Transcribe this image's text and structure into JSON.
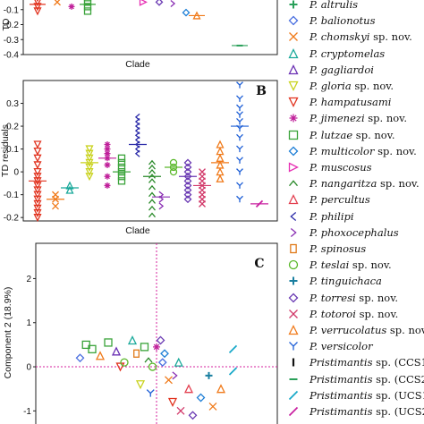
{
  "species": [
    {
      "id": "altrulis",
      "genus": "P.",
      "epithet": "altrulis",
      "suffix": "",
      "color": "#2aa05a",
      "symbol": "plus"
    },
    {
      "id": "balionotus",
      "genus": "P.",
      "epithet": "balionotus",
      "suffix": "",
      "color": "#4a6fe0",
      "symbol": "diamond"
    },
    {
      "id": "chomskyi",
      "genus": "P.",
      "epithet": "chomskyi",
      "suffix": "sp. nov.",
      "color": "#f07a1a",
      "symbol": "x"
    },
    {
      "id": "cryptomelas",
      "genus": "P.",
      "epithet": "cryptomelas",
      "suffix": "",
      "color": "#19a99a",
      "symbol": "triangle"
    },
    {
      "id": "gagliardoi",
      "genus": "P.",
      "epithet": "gagliardoi",
      "suffix": "",
      "color": "#6a2fb3",
      "symbol": "triangle"
    },
    {
      "id": "gloria",
      "genus": "P.",
      "epithet": "gloria",
      "suffix": "sp. nov.",
      "color": "#c9d21e",
      "symbol": "tri-down"
    },
    {
      "id": "hampatusami",
      "genus": "P.",
      "epithet": "hampatusami",
      "suffix": "",
      "color": "#e1331f",
      "symbol": "tri-down"
    },
    {
      "id": "jimenezi",
      "genus": "P.",
      "epithet": "jimenezi",
      "suffix": "sp. nov.",
      "color": "#c0209a",
      "symbol": "asterisk"
    },
    {
      "id": "lutzae",
      "genus": "P.",
      "epithet": "lutzae",
      "suffix": "sp. nov.",
      "color": "#3aa33a",
      "symbol": "square"
    },
    {
      "id": "multicolor",
      "genus": "P.",
      "epithet": "multicolor",
      "suffix": "sp. nov.",
      "color": "#1e7fd6",
      "symbol": "diamond"
    },
    {
      "id": "muscosus",
      "genus": "P.",
      "epithet": "muscosus",
      "suffix": "",
      "color": "#e62fb3",
      "symbol": "tri-right"
    },
    {
      "id": "nangaritza",
      "genus": "P.",
      "epithet": "nangaritza",
      "suffix": "sp. nov.",
      "color": "#2a8a2a",
      "symbol": "chevron-up"
    },
    {
      "id": "percultus",
      "genus": "P.",
      "epithet": "percultus",
      "suffix": "",
      "color": "#e34050",
      "symbol": "triangle"
    },
    {
      "id": "philipi",
      "genus": "P.",
      "epithet": "philipi",
      "suffix": "",
      "color": "#2a2aa8",
      "symbol": "chevron-left"
    },
    {
      "id": "phoxocephalus",
      "genus": "P.",
      "epithet": "phoxocephalus",
      "suffix": "",
      "color": "#8a2fb3",
      "symbol": "chevron-right"
    },
    {
      "id": "spinosus",
      "genus": "P.",
      "epithet": "spinosus",
      "suffix": "",
      "color": "#e07a1a",
      "symbol": "rect"
    },
    {
      "id": "teslai",
      "genus": "P.",
      "epithet": "teslai",
      "suffix": "sp. nov.",
      "color": "#5ab82a",
      "symbol": "circle"
    },
    {
      "id": "tinguichaca",
      "genus": "P.",
      "epithet": "tinguichaca",
      "suffix": "",
      "color": "#1a7fa0",
      "symbol": "plus"
    },
    {
      "id": "torresi",
      "genus": "P.",
      "epithet": "torresi",
      "suffix": "sp. nov.",
      "color": "#6a3ab3",
      "symbol": "diamond"
    },
    {
      "id": "totoroi",
      "genus": "P.",
      "epithet": "totoroi",
      "suffix": "sp. nov.",
      "color": "#d23a6a",
      "symbol": "x"
    },
    {
      "id": "verrucolatus",
      "genus": "P.",
      "epithet": "verrucolatus",
      "suffix": "sp. nov.",
      "color": "#f07a1a",
      "symbol": "triangle"
    },
    {
      "id": "versicolor",
      "genus": "P.",
      "epithet": "versicolor",
      "suffix": "",
      "color": "#1e5fd6",
      "symbol": "y"
    },
    {
      "id": "ccs1",
      "genus": "Pristimantis",
      "epithet": "",
      "suffix": "sp. (CCS1)",
      "color": "#111111",
      "symbol": "vbar"
    },
    {
      "id": "ccs2",
      "genus": "Pristimantis",
      "epithet": "",
      "suffix": "sp. (CCS2)",
      "color": "#2aa05a",
      "symbol": "hbar"
    },
    {
      "id": "ucs1",
      "genus": "Pristimantis",
      "epithet": "",
      "suffix": "sp. (UCS1)",
      "color": "#19a9c9",
      "symbol": "slash"
    },
    {
      "id": "ucs2",
      "genus": "Pristimantis",
      "epithet": "",
      "suffix": "sp. (UCS2)",
      "color": "#c920a0",
      "symbol": "slash"
    }
  ],
  "chart_data": [
    {
      "panel": "A",
      "type": "scatter",
      "xlabel": "Clade",
      "ylabel": "TD",
      "ylim": [
        -0.4,
        0.0
      ],
      "yticks": [
        -0.1,
        -0.2,
        -0.3,
        -0.4
      ],
      "points": [
        {
          "sp": "hampatusami",
          "values": [
            -0.02,
            -0.05,
            -0.08,
            -0.11
          ]
        },
        {
          "sp": "chomskyi",
          "values": [
            -0.05
          ]
        },
        {
          "sp": "jimenezi",
          "values": [
            -0.08
          ]
        },
        {
          "sp": "lutzae",
          "values": [
            -0.02,
            -0.05,
            -0.08,
            -0.11
          ]
        },
        {
          "sp": "muscosus",
          "values": [
            -0.05
          ]
        },
        {
          "sp": "torresi",
          "values": [
            -0.05
          ]
        },
        {
          "sp": "phoxocephalus",
          "values": [
            -0.06
          ]
        },
        {
          "sp": "multicolor",
          "values": [
            -0.12
          ]
        },
        {
          "sp": "verrucolatus",
          "values": [
            -0.14
          ]
        },
        {
          "sp": "ccs2",
          "values": [
            -0.34
          ]
        }
      ]
    },
    {
      "panel": "B",
      "type": "scatter",
      "xlabel": "Clade",
      "ylabel": "TD residuals",
      "ylim": [
        -0.2,
        0.4
      ],
      "yticks": [
        0.3,
        0.2,
        0.1,
        0,
        -0.1,
        -0.2
      ],
      "columns": [
        {
          "sp": "hampatusami",
          "values": [
            0.12,
            0.09,
            0.06,
            0.03,
            0.0,
            -0.02,
            -0.04,
            -0.06,
            -0.08,
            -0.1,
            -0.12,
            -0.14,
            -0.16,
            -0.18,
            -0.2
          ],
          "mean": -0.04
        },
        {
          "sp": "chomskyi",
          "values": [
            -0.1,
            -0.12,
            -0.15
          ],
          "mean": -0.12
        },
        {
          "sp": "cryptomelas",
          "values": [
            -0.06,
            -0.08
          ],
          "mean": -0.07
        },
        {
          "sp": "gloria",
          "values": [
            0.1,
            0.08,
            0.06,
            0.04,
            0.02,
            0.0,
            -0.02
          ],
          "mean": 0.04
        },
        {
          "sp": "jimenezi",
          "values": [
            0.12,
            0.1,
            0.08,
            0.06,
            0.03,
            -0.02,
            -0.06
          ],
          "mean": 0.06
        },
        {
          "sp": "lutzae",
          "values": [
            0.06,
            0.04,
            0.02,
            0.0,
            -0.02,
            -0.04
          ],
          "mean": 0.0
        },
        {
          "sp": "philipi",
          "values": [
            0.24,
            0.22,
            0.2,
            0.18,
            0.16,
            0.14,
            0.12,
            0.1,
            0.08
          ],
          "mean": 0.12
        },
        {
          "sp": "nangaritza",
          "values": [
            0.04,
            0.02,
            0.0,
            -0.02,
            -0.04,
            -0.07,
            -0.1,
            -0.13,
            -0.16,
            -0.19
          ],
          "mean": -0.02
        },
        {
          "sp": "phoxocephalus",
          "values": [
            -0.1,
            -0.12,
            -0.15
          ],
          "mean": -0.11
        },
        {
          "sp": "teslai",
          "values": [
            0.04,
            0.02,
            0.0
          ],
          "mean": 0.02
        },
        {
          "sp": "torresi",
          "values": [
            0.04,
            0.02,
            0.0,
            -0.02,
            -0.04,
            -0.06,
            -0.08,
            -0.1,
            -0.12
          ],
          "mean": -0.02
        },
        {
          "sp": "totoroi",
          "values": [
            0.0,
            -0.02,
            -0.04,
            -0.06,
            -0.08,
            -0.1,
            -0.12,
            -0.14
          ],
          "mean": -0.06
        },
        {
          "sp": "verrucolatus",
          "values": [
            0.12,
            0.09,
            0.06,
            0.03,
            0.0,
            -0.03
          ],
          "mean": 0.04
        },
        {
          "sp": "versicolor",
          "values": [
            0.38,
            0.32,
            0.28,
            0.25,
            0.22,
            0.19,
            0.15,
            0.1,
            0.05,
            0.0,
            -0.06,
            -0.12
          ],
          "mean": 0.2
        },
        {
          "sp": "ucs2",
          "values": [
            -0.14
          ],
          "mean": -0.14
        }
      ]
    },
    {
      "panel": "C",
      "type": "scatter",
      "xlabel": "",
      "ylabel": "Component 2 (18.9%)",
      "xlim": [
        -3,
        3
      ],
      "ylim": [
        -1.5,
        2.8
      ],
      "yticks": [
        2,
        1,
        0,
        -1
      ],
      "points": [
        {
          "sp": "balionotus",
          "x": -1.9,
          "y": 0.2
        },
        {
          "sp": "lutzae",
          "x": -1.6,
          "y": 0.4
        },
        {
          "sp": "verrucolatus",
          "x": -1.4,
          "y": 0.25
        },
        {
          "sp": "lutzae",
          "x": -1.2,
          "y": 0.55
        },
        {
          "sp": "gagliardoi",
          "x": -1.0,
          "y": 0.35
        },
        {
          "sp": "hampatusami",
          "x": -0.9,
          "y": 0.0
        },
        {
          "sp": "teslai",
          "x": -0.8,
          "y": 0.1
        },
        {
          "sp": "cryptomelas",
          "x": -0.6,
          "y": 0.6
        },
        {
          "sp": "spinosus",
          "x": -0.5,
          "y": 0.3
        },
        {
          "sp": "gloria",
          "x": -0.4,
          "y": -0.4
        },
        {
          "sp": "lutzae",
          "x": -0.3,
          "y": 0.45
        },
        {
          "sp": "nangaritza",
          "x": -0.2,
          "y": 0.15
        },
        {
          "sp": "teslai",
          "x": -0.1,
          "y": 0.0
        },
        {
          "sp": "versicolor",
          "x": -0.15,
          "y": -0.6
        },
        {
          "sp": "jimenezi",
          "x": 0.0,
          "y": 0.45
        },
        {
          "sp": "torresi",
          "x": 0.1,
          "y": 0.6
        },
        {
          "sp": "multicolor",
          "x": 0.2,
          "y": 0.3
        },
        {
          "sp": "chomskyi",
          "x": 0.3,
          "y": -0.3
        },
        {
          "sp": "hampatusami",
          "x": 0.4,
          "y": -0.8
        },
        {
          "sp": "phoxocephalus",
          "x": 0.45,
          "y": -0.2
        },
        {
          "sp": "cryptomelas",
          "x": 0.55,
          "y": 0.1
        },
        {
          "sp": "totoroi",
          "x": 0.6,
          "y": -1.0
        },
        {
          "sp": "percultus",
          "x": 0.8,
          "y": -0.5
        },
        {
          "sp": "torresi",
          "x": 0.9,
          "y": -1.1
        },
        {
          "sp": "multicolor",
          "x": 1.1,
          "y": -0.7
        },
        {
          "sp": "tinguichaca",
          "x": 1.3,
          "y": -0.2
        },
        {
          "sp": "chomskyi",
          "x": 1.4,
          "y": -0.9
        },
        {
          "sp": "verrucolatus",
          "x": 1.6,
          "y": -0.5
        },
        {
          "sp": "ucs1",
          "x": 1.9,
          "y": 0.4
        },
        {
          "sp": "lutzae",
          "x": -1.75,
          "y": 0.5
        },
        {
          "sp": "balionotus",
          "x": 0.15,
          "y": 0.1
        },
        {
          "sp": "ucs1",
          "x": 1.9,
          "y": -0.1
        }
      ]
    }
  ]
}
